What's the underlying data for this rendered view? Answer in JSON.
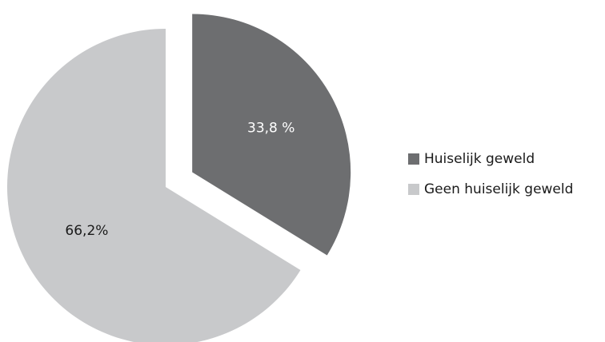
{
  "chart_data": {
    "type": "pie",
    "categories": [
      "Huiselijk geweld",
      "Geen huiselijk geweld"
    ],
    "values": [
      33.8,
      66.2
    ],
    "value_labels": [
      "33,8 %",
      "66,2%"
    ],
    "colors": [
      "#6d6e70",
      "#c8c9cb"
    ],
    "legend": "right"
  }
}
